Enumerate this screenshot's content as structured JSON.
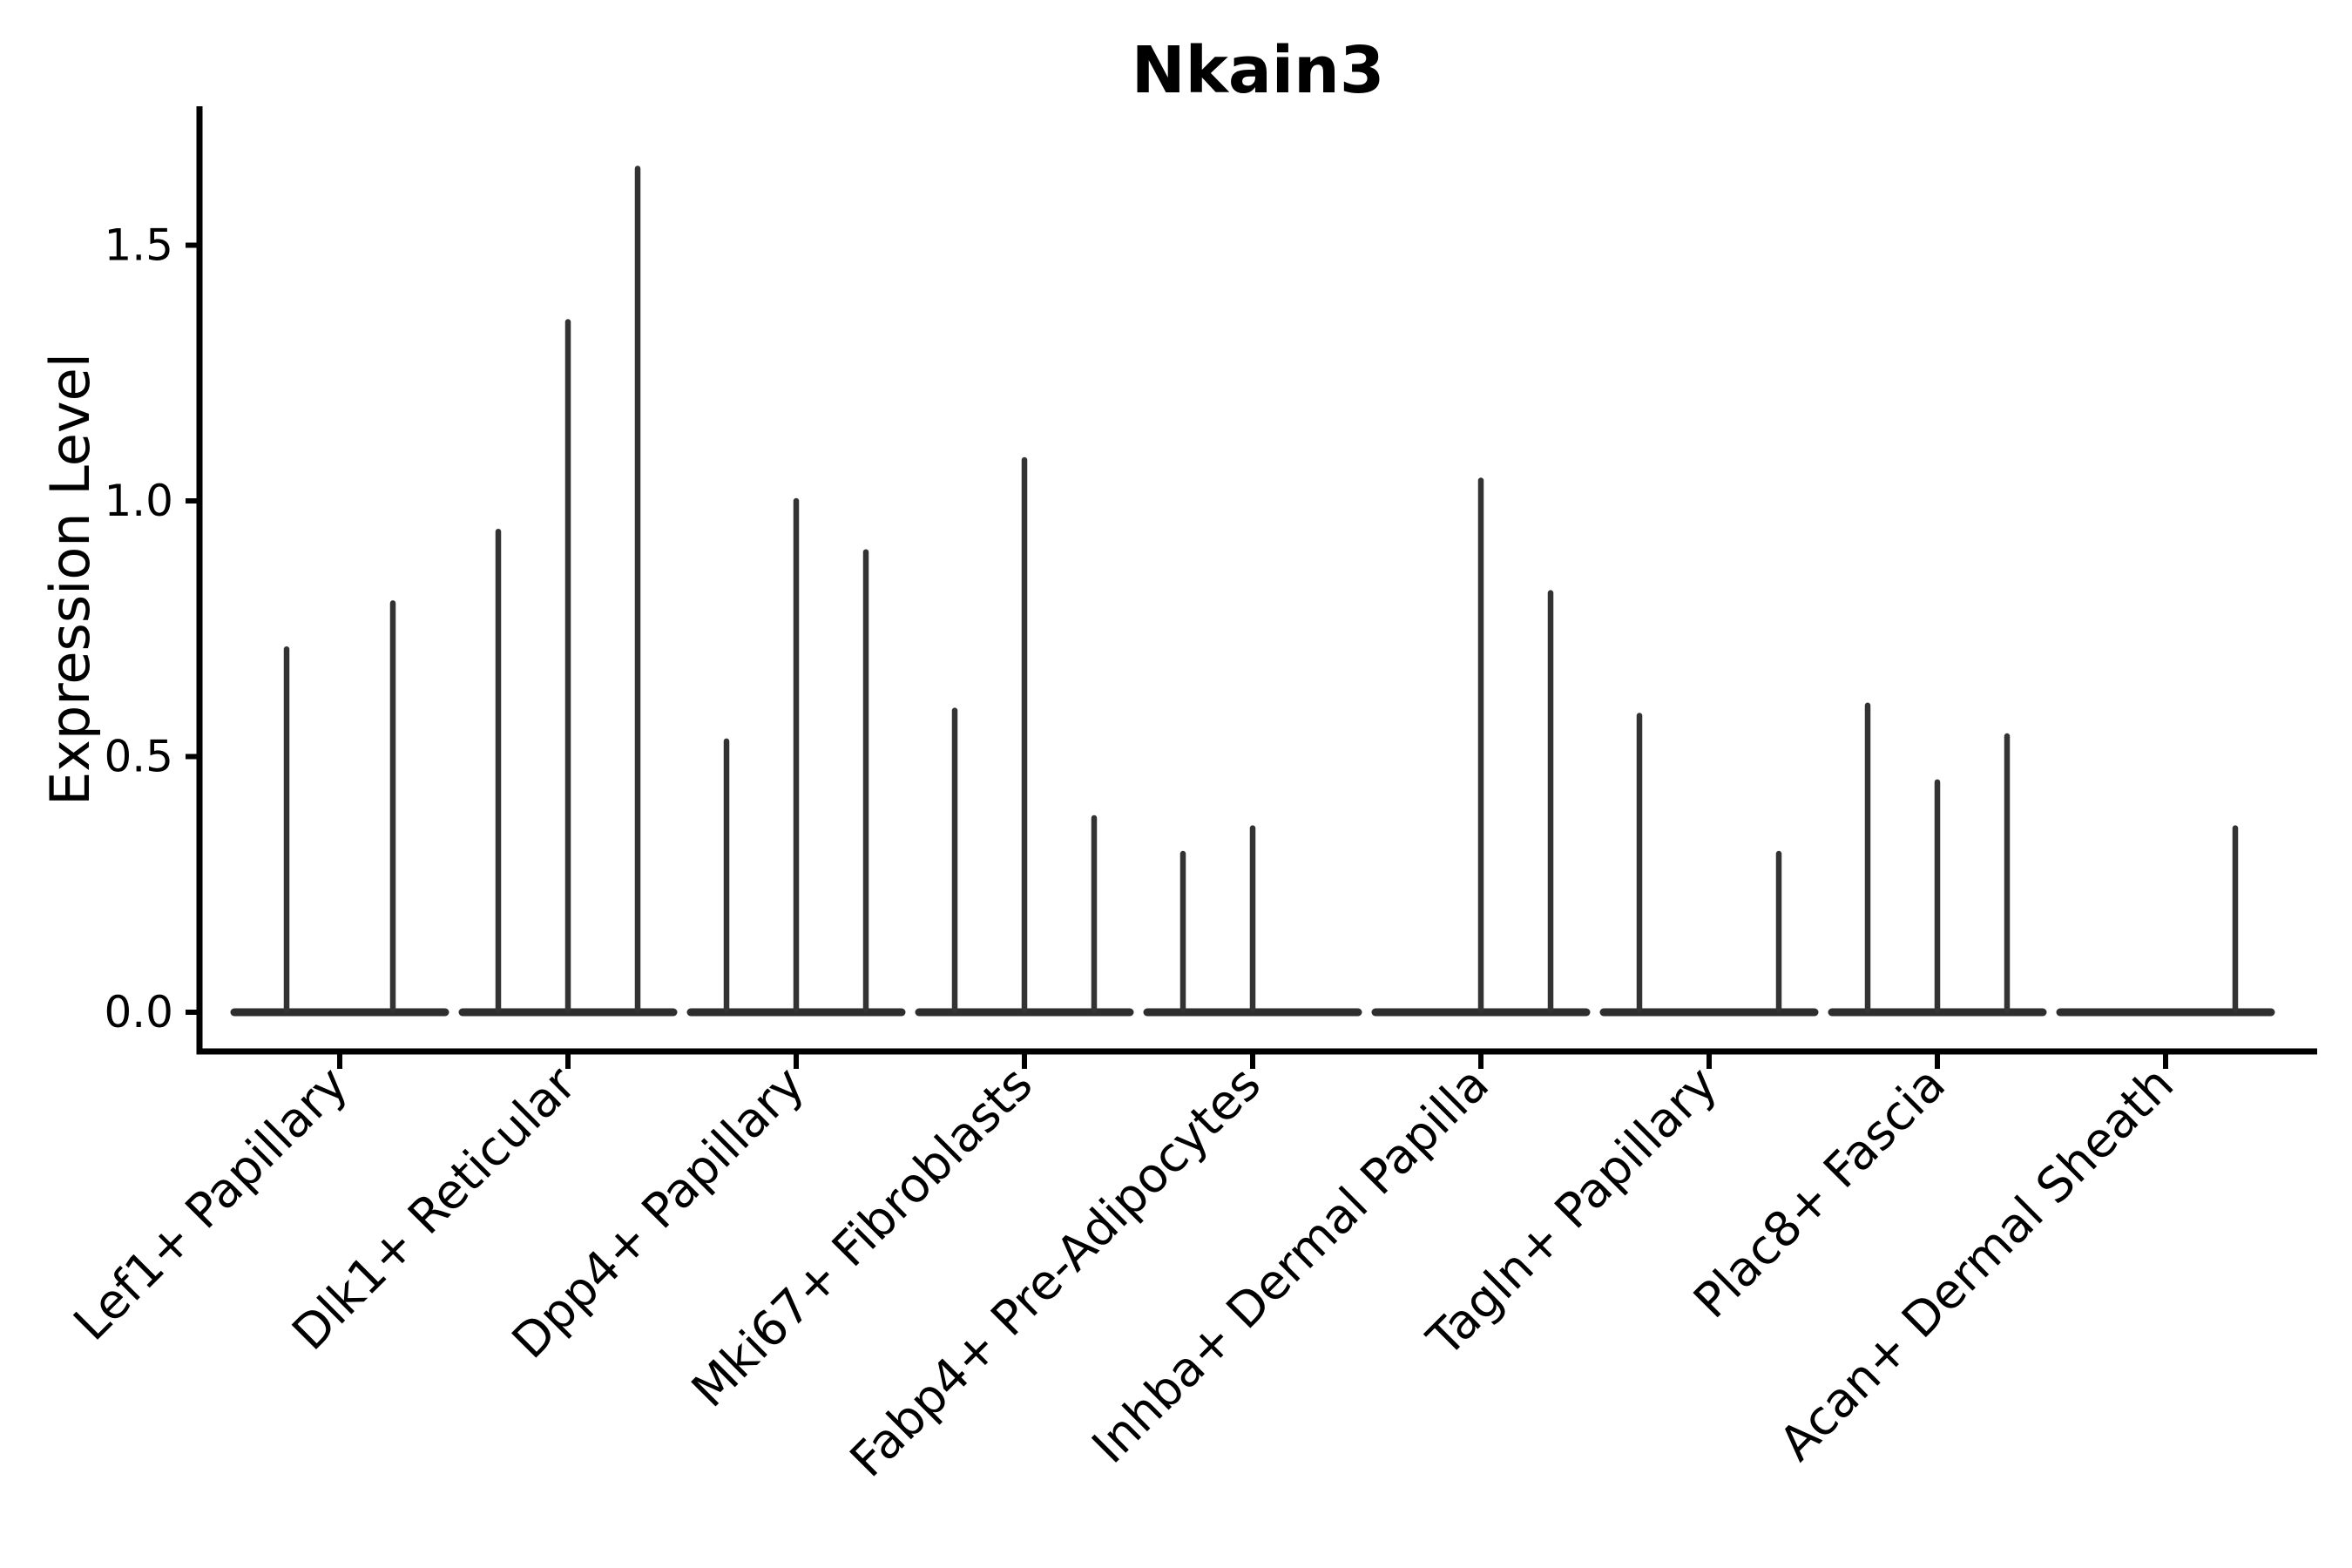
{
  "title": "Nkain3",
  "colors": {
    "background": "#ffffff",
    "axis": "#000000",
    "text": "#000000",
    "violin_spike": "#333333",
    "violin_base": "#2e2e2e"
  },
  "chart_data": {
    "type": "violin",
    "title": "Nkain3",
    "xlabel": "",
    "ylabel": "Expression Level",
    "ylim": [
      -0.08,
      1.77
    ],
    "grid": false,
    "legend_position": "none",
    "yticks": [
      {
        "value": 0.0,
        "label": "0.0"
      },
      {
        "value": 0.5,
        "label": "0.5"
      },
      {
        "value": 1.0,
        "label": "1.0"
      },
      {
        "value": 1.5,
        "label": "1.5"
      }
    ],
    "categories": [
      "Lef1+ Papillary",
      "Dlk1+ Reticular",
      "Dpp4+ Papillary",
      "Mki67+ Fibroblasts",
      "Fabp4+ Pre-Adipocytes",
      "Inhba+ Dermal Papilla",
      "Tagln+ Papillary",
      "Plac8+ Fascia",
      "Acan+ Dermal Sheath"
    ],
    "violins": [
      {
        "category": "Lef1+ Papillary",
        "spikes": [
          {
            "dx": -61,
            "max": 0.71
          },
          {
            "dx": 61,
            "max": 0.8
          }
        ]
      },
      {
        "category": "Dlk1+ Reticular",
        "spikes": [
          {
            "dx": -80,
            "max": 0.94
          },
          {
            "dx": 0,
            "max": 1.35
          },
          {
            "dx": 80,
            "max": 1.65
          }
        ]
      },
      {
        "category": "Dpp4+ Papillary",
        "spikes": [
          {
            "dx": -80,
            "max": 0.53
          },
          {
            "dx": 0,
            "max": 1.0
          },
          {
            "dx": 80,
            "max": 0.9
          }
        ]
      },
      {
        "category": "Mki67+ Fibroblasts",
        "spikes": [
          {
            "dx": -80,
            "max": 0.59
          },
          {
            "dx": 0,
            "max": 1.08
          },
          {
            "dx": 80,
            "max": 0.38
          }
        ]
      },
      {
        "category": "Fabp4+ Pre-Adipocytes",
        "spikes": [
          {
            "dx": -80,
            "max": 0.31
          },
          {
            "dx": 0,
            "max": 0.36
          }
        ]
      },
      {
        "category": "Inhba+ Dermal Papilla",
        "spikes": [
          {
            "dx": 0,
            "max": 1.04
          },
          {
            "dx": 80,
            "max": 0.82
          }
        ]
      },
      {
        "category": "Tagln+ Papillary",
        "spikes": [
          {
            "dx": -80,
            "max": 0.58
          },
          {
            "dx": 80,
            "max": 0.31
          }
        ]
      },
      {
        "category": "Plac8+ Fascia",
        "spikes": [
          {
            "dx": -80,
            "max": 0.6
          },
          {
            "dx": 0,
            "max": 0.45
          },
          {
            "dx": 80,
            "max": 0.54
          }
        ]
      },
      {
        "category": "Acan+ Dermal Sheath",
        "spikes": [
          {
            "dx": 80,
            "max": 0.36
          }
        ]
      }
    ],
    "max_expression_observed": 1.65
  }
}
